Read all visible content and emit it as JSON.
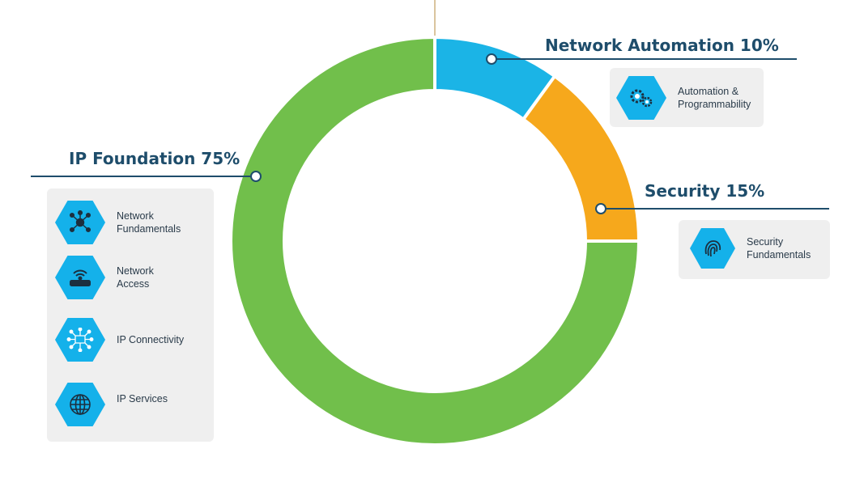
{
  "chart_data": {
    "type": "pie",
    "variant": "donut",
    "slices": [
      {
        "label": "Network Automation 10%",
        "value": 10,
        "color": "#1bb4e6"
      },
      {
        "label": "Security 15%",
        "value": 15,
        "color": "#f6a81c"
      },
      {
        "label": "IP Foundation 75%",
        "value": 75,
        "color": "#71bf4b"
      }
    ]
  },
  "leader_color": "#1e4d6b",
  "topics": {
    "automation": [
      {
        "icon": "gears-icon",
        "label": "Automation &\nProgrammability"
      }
    ],
    "security": [
      {
        "icon": "fingerprint-icon",
        "label": "Security\nFundamentals"
      }
    ],
    "foundation": [
      {
        "icon": "network-hub-icon",
        "label": "Network\nFundamentals"
      },
      {
        "icon": "wifi-router-icon",
        "label": "Network\nAccess"
      },
      {
        "icon": "connectivity-icon",
        "label": "IP Connectivity"
      },
      {
        "icon": "globe-icon",
        "label": "IP Services"
      }
    ]
  }
}
